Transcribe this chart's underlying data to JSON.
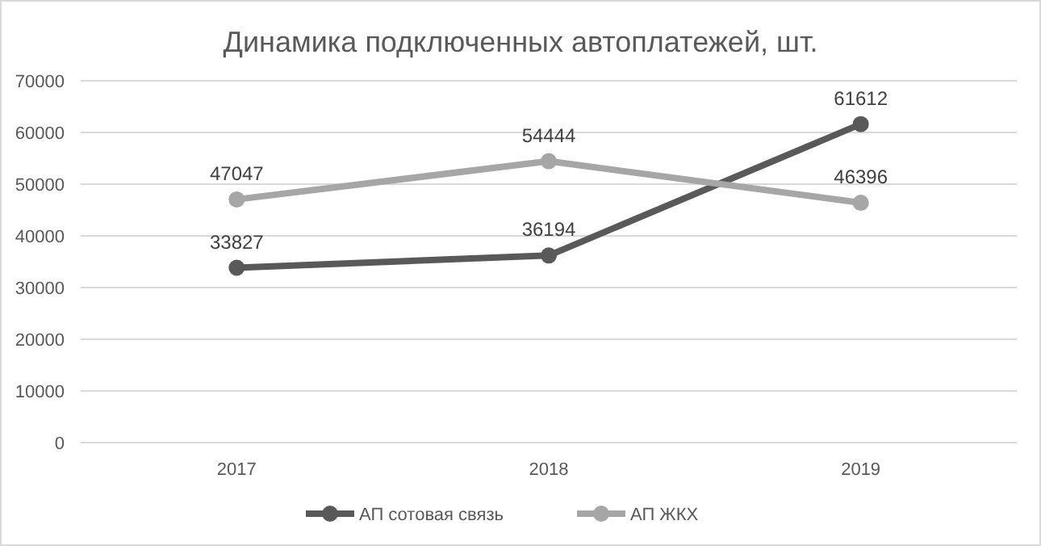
{
  "chart_data": {
    "type": "line",
    "title": "Динамика подключенных автоплатежей, шт.",
    "categories": [
      "2017",
      "2018",
      "2019"
    ],
    "series": [
      {
        "name": "АП сотовая связь",
        "color": "#595959",
        "values": [
          33827,
          36194,
          61612
        ]
      },
      {
        "name": "АП ЖКХ",
        "color": "#a6a6a6",
        "values": [
          47047,
          54444,
          46396
        ]
      }
    ],
    "ylim": [
      0,
      70000
    ],
    "yticks": [
      0,
      10000,
      20000,
      30000,
      40000,
      50000,
      60000,
      70000
    ],
    "grid": "y",
    "legend": "bottom",
    "marker": "circle",
    "line_style": "solid",
    "data_labels": true
  }
}
